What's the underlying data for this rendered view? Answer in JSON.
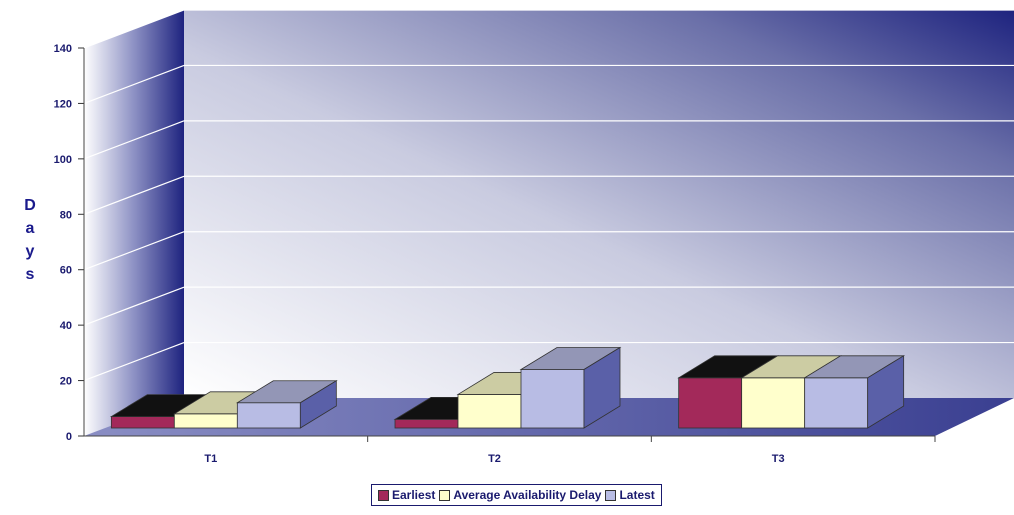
{
  "chart_data": {
    "type": "bar",
    "title": "",
    "xlabel": "",
    "ylabel": "D a y s",
    "ylim": [
      0,
      140
    ],
    "yticks": [
      "0",
      "20",
      "40",
      "60",
      "80",
      "100",
      "120",
      "140"
    ],
    "categories": [
      "T1",
      "T2",
      "T3"
    ],
    "series": [
      {
        "name": "Earliest",
        "values": [
          7,
          6,
          21
        ],
        "color": "#a3295a"
      },
      {
        "name": "Average Availability Delay",
        "values": [
          8,
          15,
          21
        ],
        "color": "#ffffcc"
      },
      {
        "name": "Latest",
        "values": [
          12,
          24,
          21
        ],
        "color": "#b8bce4"
      }
    ],
    "grid": true,
    "legend_position": "bottom"
  }
}
